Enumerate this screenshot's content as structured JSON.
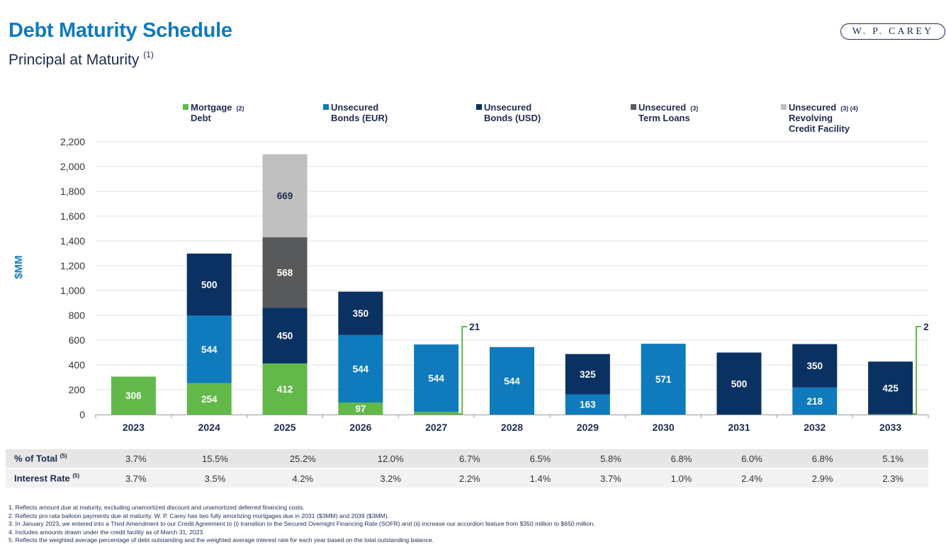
{
  "header": {
    "title": "Debt Maturity Schedule",
    "subtitle": "Principal at Maturity",
    "subtitle_note": "(1)",
    "logo_text": "W. P. CAREY"
  },
  "legend": [
    {
      "lines": [
        "Mortgage",
        "Debt"
      ],
      "note": "(2)",
      "color": "#62b94a"
    },
    {
      "lines": [
        "Unsecured",
        "Bonds (EUR)"
      ],
      "note": "",
      "color": "#0f7bbd"
    },
    {
      "lines": [
        "Unsecured",
        "Bonds (USD)"
      ],
      "note": "",
      "color": "#0a3161"
    },
    {
      "lines": [
        "Unsecured",
        "Term Loans"
      ],
      "note": "(3)",
      "color": "#58595b"
    },
    {
      "lines": [
        "Unsecured",
        "Revolving",
        "Credit Facility"
      ],
      "note": "(3) (4)",
      "color": "#c0c0c0"
    }
  ],
  "chart_data": {
    "type": "bar",
    "stacked": true,
    "categories": [
      "2023",
      "2024",
      "2025",
      "2026",
      "2027",
      "2028",
      "2029",
      "2030",
      "2031",
      "2032",
      "2033"
    ],
    "ylabel": "$MM",
    "ylim": [
      0,
      2200
    ],
    "yticks": [
      "0",
      "200",
      "400",
      "600",
      "800",
      "1,000",
      "1,200",
      "1,400",
      "1,600",
      "1,800",
      "2,000",
      "2,200"
    ],
    "grid": true,
    "series": [
      {
        "name": "Mortgage Debt",
        "color": "#62b94a",
        "label_color": "#ffffff",
        "values": [
          306,
          254,
          412,
          97,
          21,
          0,
          0,
          0,
          0,
          0,
          2
        ]
      },
      {
        "name": "Unsecured Bonds (EUR)",
        "color": "#0f7bbd",
        "label_color": "#ffffff",
        "values": [
          0,
          544,
          0,
          544,
          544,
          544,
          163,
          571,
          0,
          218,
          0
        ]
      },
      {
        "name": "Unsecured Bonds (USD)",
        "color": "#0a3161",
        "label_color": "#ffffff",
        "values": [
          0,
          500,
          450,
          350,
          0,
          0,
          325,
          0,
          500,
          350,
          425
        ]
      },
      {
        "name": "Unsecured Term Loans",
        "color": "#58595b",
        "label_color": "#ffffff",
        "values": [
          0,
          0,
          568,
          0,
          0,
          0,
          0,
          0,
          0,
          0,
          0
        ]
      },
      {
        "name": "Unsecured Revolving Credit Facility",
        "color": "#c0c0c0",
        "label_color": "#1d2b4f",
        "values": [
          0,
          0,
          669,
          0,
          0,
          0,
          0,
          0,
          0,
          0,
          0
        ]
      }
    ],
    "callouts": [
      {
        "category": "2027",
        "series": "Mortgage Debt",
        "label": "21"
      },
      {
        "category": "2033",
        "series": "Mortgage Debt",
        "label": "2"
      }
    ]
  },
  "table": {
    "rows": [
      {
        "label": "% of Total",
        "note": "(5)",
        "values": [
          "3.7%",
          "15.5%",
          "25.2%",
          "12.0%",
          "6.7%",
          "6.5%",
          "5.8%",
          "6.8%",
          "6.0%",
          "6.8%",
          "5.1%"
        ]
      },
      {
        "label": "Interest Rate",
        "note": "(5)",
        "values": [
          "3.7%",
          "3.5%",
          "4.2%",
          "3.2%",
          "2.2%",
          "1.4%",
          "3.7%",
          "1.0%",
          "2.4%",
          "2.9%",
          "2.3%"
        ]
      }
    ]
  },
  "footnotes": [
    "1.  Reflects amount due at maturity, excluding unamortized discount and unamortized deferred financing costs.",
    "2. Reflects pro rata balloon payments due at maturity. W. P. Carey has two fully amortizing mortgages due in 2031 ($3MM) and 2039 ($3MM).",
    "3. In January 2023, we entered into a Third Amendment to our Credit Agreement to (i) transition to the Secured Overnight Financing Rate (SOFR) and (ii) increase our accordion feature from $350 million to $650 million.",
    "4. Includes amounts drawn under the credit facility as of March 31, 2023.",
    "5. Reflects the weighted average percentage of debt outstanding and the weighted average interest rate for each year based on the total outstanding balance."
  ]
}
